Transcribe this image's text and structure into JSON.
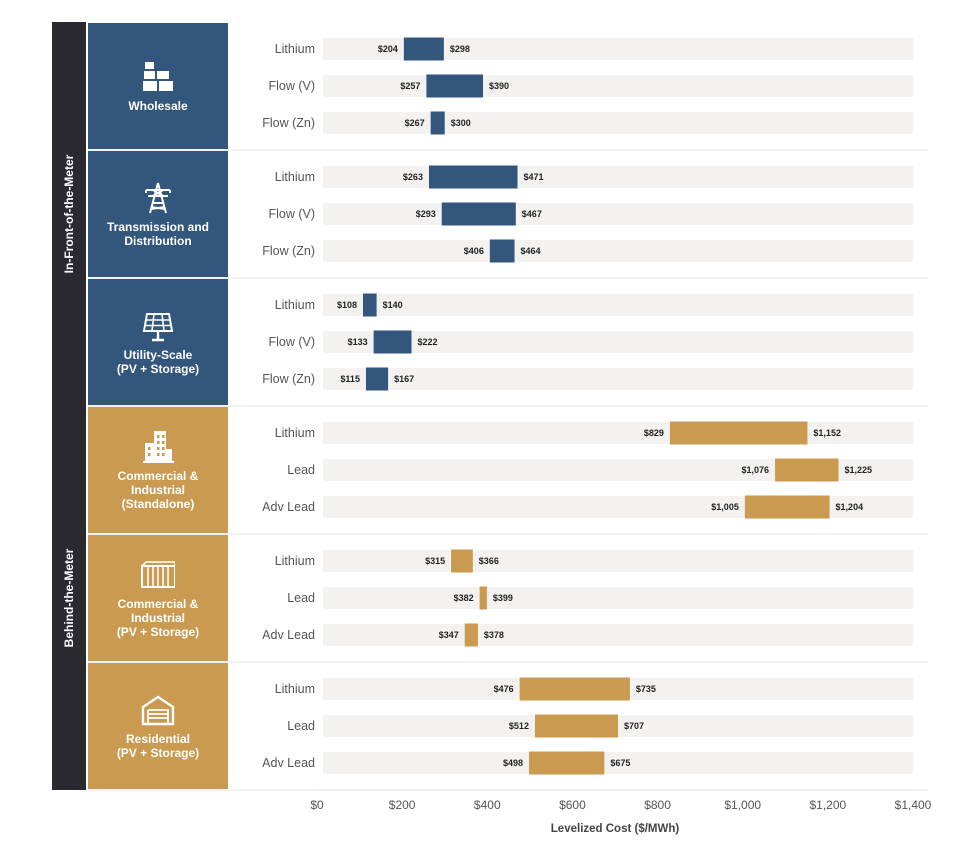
{
  "colors": {
    "in_front": "#33567c",
    "behind": "#c99a4f",
    "group_bar": "#2a2a30",
    "track": "#f3f2f1"
  },
  "chart_data": {
    "type": "range-bar",
    "title": "",
    "xlabel": "Levelized Cost ($/MWh)",
    "xlim": [
      0,
      1400
    ],
    "ticks": [
      {
        "value": 0,
        "label": "$0"
      },
      {
        "value": 200,
        "label": "$200"
      },
      {
        "value": 400,
        "label": "$400"
      },
      {
        "value": 600,
        "label": "$600"
      },
      {
        "value": 800,
        "label": "$800"
      },
      {
        "value": 1000,
        "label": "$1,000"
      },
      {
        "value": 1200,
        "label": "$1,200"
      },
      {
        "value": 1400,
        "label": "$1,400"
      }
    ],
    "groups": [
      {
        "name": "In-Front-of-the-Meter",
        "color_key": "in_front",
        "categories": [
          {
            "lines": [
              "Wholesale"
            ],
            "icon": "containers-icon",
            "rows": [
              {
                "tech": "Lithium",
                "low": 204,
                "high": 298,
                "low_label": "$204",
                "high_label": "$298"
              },
              {
                "tech": "Flow (V)",
                "low": 257,
                "high": 390,
                "low_label": "$257",
                "high_label": "$390"
              },
              {
                "tech": "Flow (Zn)",
                "low": 267,
                "high": 300,
                "low_label": "$267",
                "high_label": "$300"
              }
            ]
          },
          {
            "lines": [
              "Transmission and",
              "Distribution"
            ],
            "icon": "power-tower-icon",
            "rows": [
              {
                "tech": "Lithium",
                "low": 263,
                "high": 471,
                "low_label": "$263",
                "high_label": "$471"
              },
              {
                "tech": "Flow (V)",
                "low": 293,
                "high": 467,
                "low_label": "$293",
                "high_label": "$467"
              },
              {
                "tech": "Flow (Zn)",
                "low": 406,
                "high": 464,
                "low_label": "$406",
                "high_label": "$464"
              }
            ]
          },
          {
            "lines": [
              "Utility-Scale",
              "(PV + Storage)"
            ],
            "icon": "solar-panel-icon",
            "rows": [
              {
                "tech": "Lithium",
                "low": 108,
                "high": 140,
                "low_label": "$108",
                "high_label": "$140"
              },
              {
                "tech": "Flow (V)",
                "low": 133,
                "high": 222,
                "low_label": "$133",
                "high_label": "$222"
              },
              {
                "tech": "Flow (Zn)",
                "low": 115,
                "high": 167,
                "low_label": "$115",
                "high_label": "$167"
              }
            ]
          }
        ]
      },
      {
        "name": "Behind-the-Meter",
        "color_key": "behind",
        "categories": [
          {
            "lines": [
              "Commercial &",
              "Industrial",
              "(Standalone)"
            ],
            "icon": "building-icon",
            "rows": [
              {
                "tech": "Lithium",
                "low": 829,
                "high": 1152,
                "low_label": "$829",
                "high_label": "$1,152"
              },
              {
                "tech": "Lead",
                "low": 1076,
                "high": 1225,
                "low_label": "$1,076",
                "high_label": "$1,225"
              },
              {
                "tech": "Adv Lead",
                "low": 1005,
                "high": 1204,
                "low_label": "$1,005",
                "high_label": "$1,204"
              }
            ]
          },
          {
            "lines": [
              "Commercial &",
              "Industrial",
              "(PV + Storage)"
            ],
            "icon": "warehouse-icon",
            "rows": [
              {
                "tech": "Lithium",
                "low": 315,
                "high": 366,
                "low_label": "$315",
                "high_label": "$366"
              },
              {
                "tech": "Lead",
                "low": 382,
                "high": 399,
                "low_label": "$382",
                "high_label": "$399"
              },
              {
                "tech": "Adv Lead",
                "low": 347,
                "high": 378,
                "low_label": "$347",
                "high_label": "$378"
              }
            ]
          },
          {
            "lines": [
              "Residential",
              "(PV + Storage)"
            ],
            "icon": "garage-icon",
            "rows": [
              {
                "tech": "Lithium",
                "low": 476,
                "high": 735,
                "low_label": "$476",
                "high_label": "$735"
              },
              {
                "tech": "Lead",
                "low": 512,
                "high": 707,
                "low_label": "$512",
                "high_label": "$707"
              },
              {
                "tech": "Adv Lead",
                "low": 498,
                "high": 675,
                "low_label": "$498",
                "high_label": "$675"
              }
            ]
          }
        ]
      }
    ]
  }
}
